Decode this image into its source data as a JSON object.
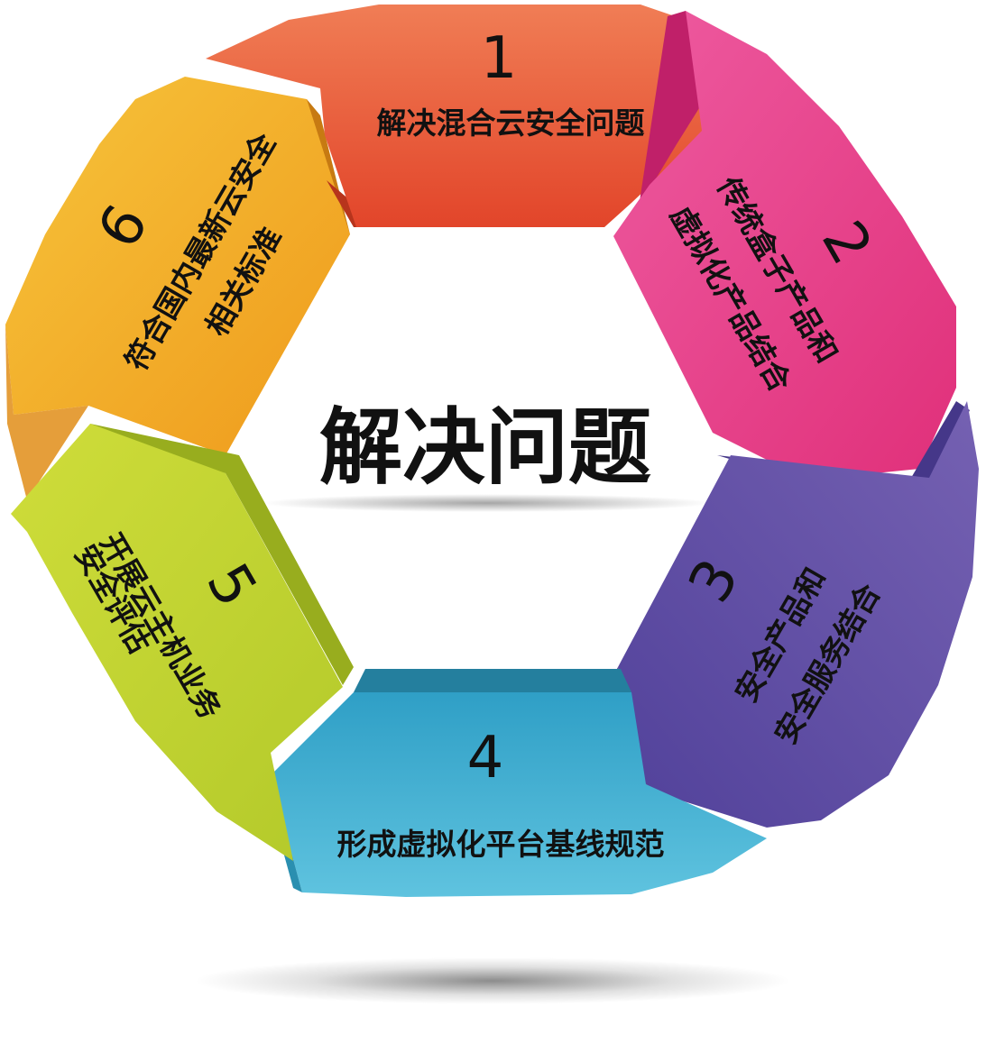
{
  "center_title": "解决问题",
  "segments": [
    {
      "number": "1",
      "lines": [
        "解决混合云安全问题"
      ],
      "color": "#e8542f"
    },
    {
      "number": "2",
      "lines": [
        "传统盒子产品和",
        "虚拟化产品结合"
      ],
      "color": "#e23a85"
    },
    {
      "number": "3",
      "lines": [
        "安全产品和",
        "安全服务结合"
      ],
      "color": "#5c4aa0"
    },
    {
      "number": "4",
      "lines": [
        "形成虚拟化平台基线规范"
      ],
      "color": "#3aaed0"
    },
    {
      "number": "5",
      "lines": [
        "开展云主机业务",
        "安全评估"
      ],
      "color": "#c2d52c"
    },
    {
      "number": "6",
      "lines": [
        "符合国内最新云安全",
        "相关标准"
      ],
      "color": "#f2a322"
    }
  ]
}
